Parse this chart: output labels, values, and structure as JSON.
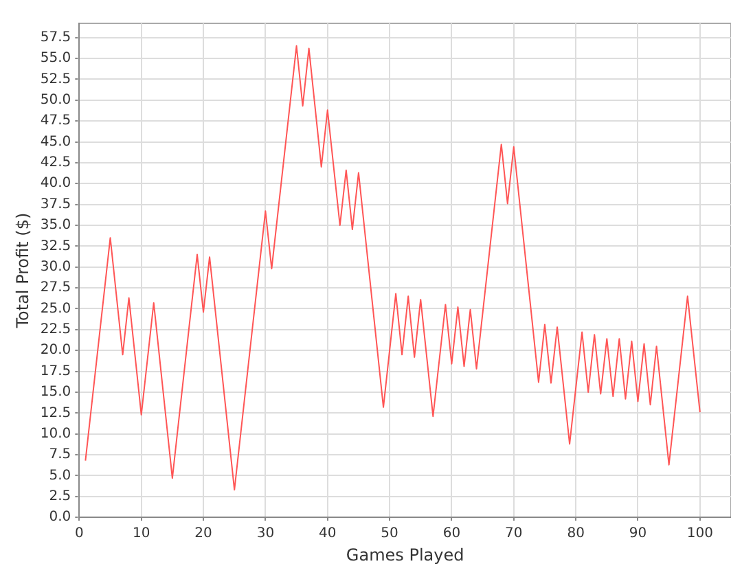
{
  "chart_data": {
    "type": "line",
    "xlabel": "Games Played",
    "ylabel": "Total Profit ($)",
    "grid": true,
    "legend": false,
    "marker": "none",
    "line_style": "solid",
    "xlim": [
      0,
      105
    ],
    "xticks": [
      0,
      10,
      20,
      30,
      40,
      50,
      60,
      70,
      80,
      90,
      100
    ],
    "ylim": [
      0,
      59.2
    ],
    "yticks": [
      {
        "value": 0,
        "label": "0.0"
      },
      {
        "value": 2.5,
        "label": "2.5"
      },
      {
        "value": 5,
        "label": "5.0"
      },
      {
        "value": 7.5,
        "label": "7.5"
      },
      {
        "value": 10,
        "label": "10.0"
      },
      {
        "value": 12.5,
        "label": "12.5"
      },
      {
        "value": 15,
        "label": "15.0"
      },
      {
        "value": 17.5,
        "label": "17.5"
      },
      {
        "value": 20,
        "label": "20.0"
      },
      {
        "value": 22.5,
        "label": "22.5"
      },
      {
        "value": 25,
        "label": "25.0"
      },
      {
        "value": 27.5,
        "label": "27.5"
      },
      {
        "value": 30,
        "label": "30.0"
      },
      {
        "value": 32.5,
        "label": "32.5"
      },
      {
        "value": 35,
        "label": "35.0"
      },
      {
        "value": 37.5,
        "label": "37.5"
      },
      {
        "value": 40,
        "label": "40.0"
      },
      {
        "value": 42.5,
        "label": "42.5"
      },
      {
        "value": 45,
        "label": "45.0"
      },
      {
        "value": 47.5,
        "label": "47.5"
      },
      {
        "value": 50,
        "label": "50.0"
      },
      {
        "value": 52.5,
        "label": "52.5"
      },
      {
        "value": 55,
        "label": "55.0"
      },
      {
        "value": 57.5,
        "label": "57.5"
      }
    ],
    "x": [
      1,
      5,
      7,
      8,
      10,
      12,
      15,
      19,
      20,
      21,
      25,
      30,
      31,
      35,
      36,
      37,
      39,
      40,
      42,
      43,
      44,
      45,
      49,
      51,
      52,
      53,
      54,
      55,
      57,
      59,
      60,
      61,
      62,
      63,
      64,
      68,
      69,
      70,
      74,
      75,
      76,
      77,
      79,
      81,
      82,
      83,
      84,
      85,
      86,
      87,
      88,
      89,
      90,
      91,
      92,
      93,
      95,
      98,
      100
    ],
    "series": [
      {
        "color": "#ff5555",
        "values": [
          6.8,
          33.5,
          19.5,
          26.3,
          12.3,
          25.7,
          4.7,
          31.5,
          24.6,
          31.2,
          3.3,
          36.7,
          29.8,
          56.5,
          49.3,
          56.2,
          42,
          48.8,
          35,
          41.6,
          34.5,
          41.3,
          13.2,
          26.8,
          19.5,
          26.5,
          19.2,
          26.1,
          12.1,
          25.5,
          18.4,
          25.2,
          18.1,
          24.9,
          17.8,
          44.7,
          37.6,
          44.4,
          16.2,
          23.1,
          16.1,
          22.8,
          8.8,
          22.2,
          15,
          21.9,
          14.8,
          21.4,
          14.5,
          21.4,
          14.2,
          21.1,
          13.9,
          20.8,
          13.5,
          20.5,
          6.3,
          26.5,
          12.6
        ]
      }
    ]
  }
}
